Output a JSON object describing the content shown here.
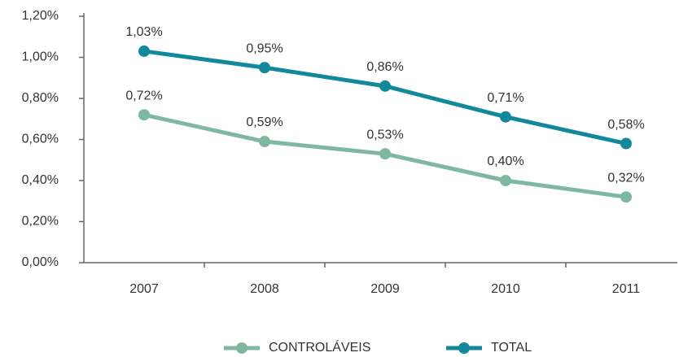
{
  "chart_data": {
    "type": "line",
    "categories": [
      "2007",
      "2008",
      "2009",
      "2010",
      "2011"
    ],
    "series": [
      {
        "name": "CONTROLÁVEIS",
        "color": "#7fb8a0",
        "values": [
          0.72,
          0.59,
          0.53,
          0.4,
          0.32
        ],
        "value_labels": [
          "0,72%",
          "0,59%",
          "0,53%",
          "0,40%",
          "0,32%"
        ]
      },
      {
        "name": "TOTAL",
        "color": "#12899a",
        "values": [
          1.03,
          0.95,
          0.86,
          0.71,
          0.58
        ],
        "value_labels": [
          "1,03%",
          "0,95%",
          "0,86%",
          "0,71%",
          "0,58%"
        ]
      }
    ],
    "ylim": [
      0,
      1.2
    ],
    "yticks": [
      {
        "value": 0,
        "label": "0,00%"
      },
      {
        "value": 0.2,
        "label": "0,20%"
      },
      {
        "value": 0.4,
        "label": "0,40%"
      },
      {
        "value": 0.6,
        "label": "0,60%"
      },
      {
        "value": 0.8,
        "label": "0,80%"
      },
      {
        "value": 1.0,
        "label": "1,00%"
      },
      {
        "value": 1.2,
        "label": "1,20%"
      }
    ],
    "legend": "bottom"
  }
}
